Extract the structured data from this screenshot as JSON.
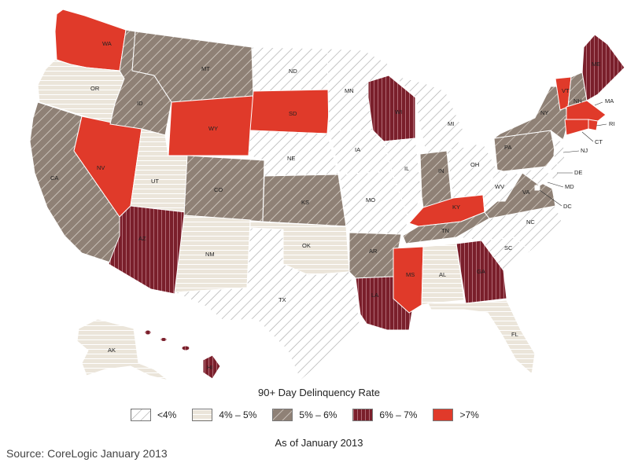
{
  "legend": {
    "title": "90+ Day Delinquency Rate",
    "items": [
      {
        "label": "<4%",
        "class": "lt4"
      },
      {
        "label": "4% – 5%",
        "class": "c45"
      },
      {
        "label": "5% – 6%",
        "class": "c56"
      },
      {
        "label": "6% – 7%",
        "class": "c67"
      },
      {
        "label": ">7%",
        "class": "gt7"
      }
    ]
  },
  "as_of": "As of January 2013",
  "source": "Source: CoreLogic January 2013",
  "colors": {
    "lt4": "#ffffff",
    "c45": "#ebe5da",
    "c56": "#8f8176",
    "c67": "#7a1f2b",
    "gt7": "#e03a2a",
    "hatch_light": "#a9a9a9",
    "hatch_beige": "#ffffff",
    "hatch_brown": "#d8d1c8",
    "hatch_maroon": "#b06a74"
  },
  "states": [
    {
      "abbr": "WA",
      "class": "gt7"
    },
    {
      "abbr": "OR",
      "class": "c45"
    },
    {
      "abbr": "CA",
      "class": "c56"
    },
    {
      "abbr": "NV",
      "class": "gt7"
    },
    {
      "abbr": "ID",
      "class": "c56"
    },
    {
      "abbr": "MT",
      "class": "c56"
    },
    {
      "abbr": "WY",
      "class": "gt7"
    },
    {
      "abbr": "UT",
      "class": "c45"
    },
    {
      "abbr": "AZ",
      "class": "c67"
    },
    {
      "abbr": "CO",
      "class": "c56"
    },
    {
      "abbr": "NM",
      "class": "c45"
    },
    {
      "abbr": "ND",
      "class": "lt4"
    },
    {
      "abbr": "SD",
      "class": "gt7"
    },
    {
      "abbr": "NE",
      "class": "lt4"
    },
    {
      "abbr": "KS",
      "class": "c56"
    },
    {
      "abbr": "OK",
      "class": "c45"
    },
    {
      "abbr": "TX",
      "class": "lt4"
    },
    {
      "abbr": "MN",
      "class": "lt4"
    },
    {
      "abbr": "IA",
      "class": "lt4"
    },
    {
      "abbr": "MO",
      "class": "lt4"
    },
    {
      "abbr": "AR",
      "class": "c56"
    },
    {
      "abbr": "LA",
      "class": "c67"
    },
    {
      "abbr": "WI",
      "class": "c67"
    },
    {
      "abbr": "IL",
      "class": "lt4"
    },
    {
      "abbr": "MI",
      "class": "lt4"
    },
    {
      "abbr": "IN",
      "class": "c56"
    },
    {
      "abbr": "OH",
      "class": "lt4"
    },
    {
      "abbr": "KY",
      "class": "gt7"
    },
    {
      "abbr": "TN",
      "class": "c56"
    },
    {
      "abbr": "MS",
      "class": "gt7"
    },
    {
      "abbr": "AL",
      "class": "c45"
    },
    {
      "abbr": "GA",
      "class": "c67"
    },
    {
      "abbr": "FL",
      "class": "c45"
    },
    {
      "abbr": "SC",
      "class": "lt4"
    },
    {
      "abbr": "NC",
      "class": "lt4"
    },
    {
      "abbr": "VA",
      "class": "c56"
    },
    {
      "abbr": "WV",
      "class": "lt4"
    },
    {
      "abbr": "PA",
      "class": "c56"
    },
    {
      "abbr": "NY",
      "class": "c56"
    },
    {
      "abbr": "VT",
      "class": "gt7"
    },
    {
      "abbr": "NH",
      "class": "c56"
    },
    {
      "abbr": "ME",
      "class": "c67"
    },
    {
      "abbr": "MA",
      "class": "gt7"
    },
    {
      "abbr": "RI",
      "class": "gt7"
    },
    {
      "abbr": "CT",
      "class": "gt7"
    },
    {
      "abbr": "NJ",
      "class": "lt4"
    },
    {
      "abbr": "DE",
      "class": "lt4"
    },
    {
      "abbr": "MD",
      "class": "lt4"
    },
    {
      "abbr": "DC",
      "class": "lt4"
    },
    {
      "abbr": "AK",
      "class": "c45"
    },
    {
      "abbr": "HI",
      "class": "c67"
    }
  ]
}
